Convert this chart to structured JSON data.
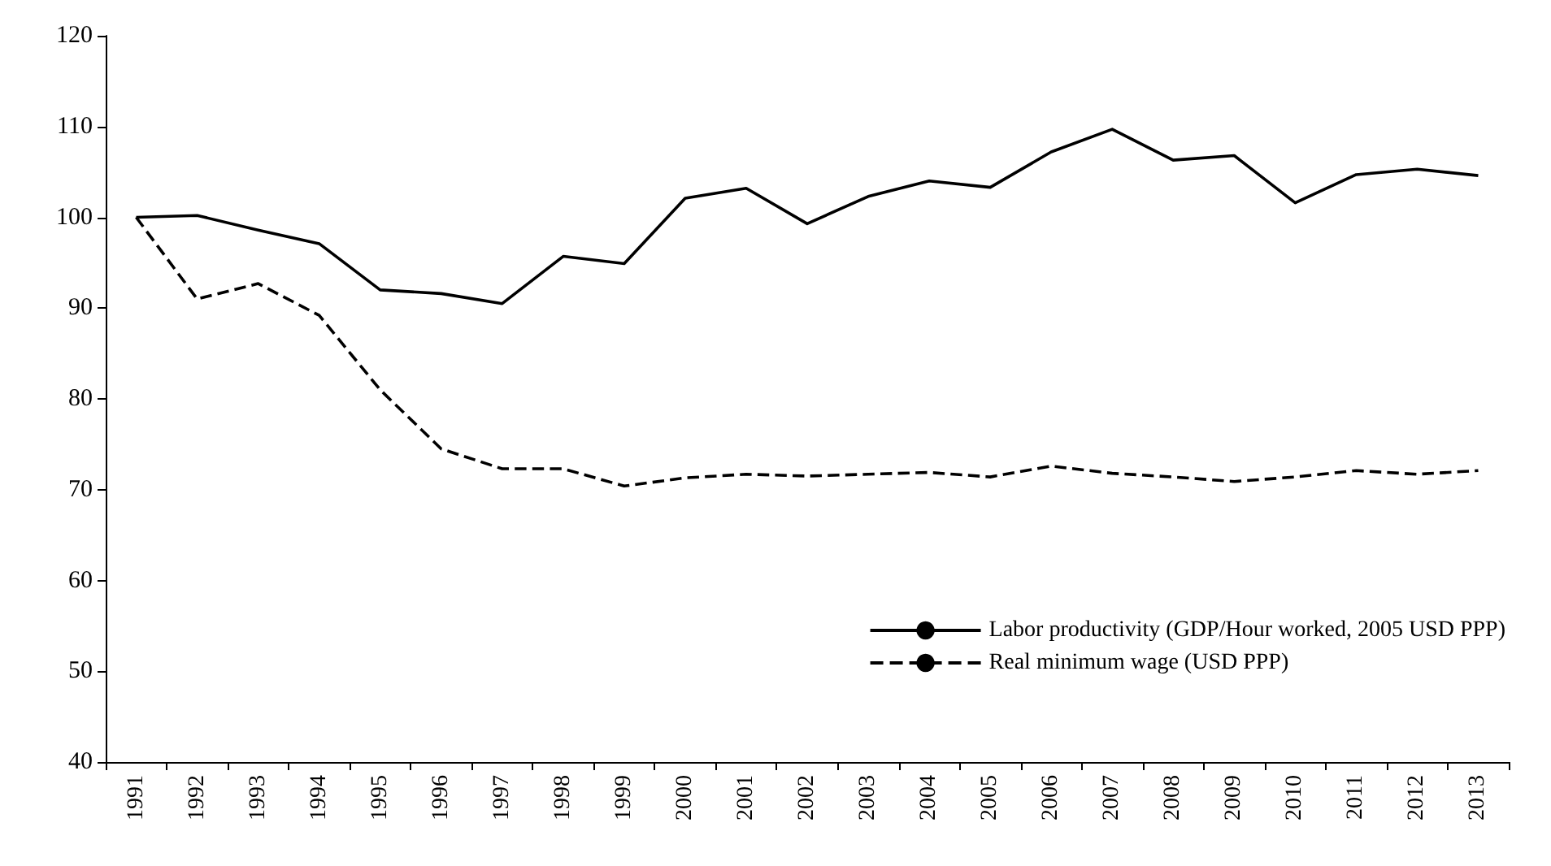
{
  "chart_data": {
    "type": "line",
    "categories": [
      "1991",
      "1992",
      "1993",
      "1994",
      "1995",
      "1996",
      "1997",
      "1998",
      "1999",
      "2000",
      "2001",
      "2002",
      "2003",
      "2004",
      "2005",
      "2006",
      "2007",
      "2008",
      "2009",
      "2010",
      "2011",
      "2012",
      "2013"
    ],
    "series": [
      {
        "name": "Labor productivity (GDP/Hour worked, 2005 USD PPP)",
        "color": "#000000",
        "line_style": "solid",
        "values": [
          100,
          100.2,
          98.6,
          97.1,
          92,
          91.6,
          90.5,
          95.7,
          94.9,
          102.1,
          103.2,
          99.3,
          102.3,
          104,
          103.3,
          107.2,
          109.7,
          106.3,
          106.8,
          101.6,
          104.7,
          105.3,
          104.6
        ]
      },
      {
        "name": "Real minimum wage (USD PPP)",
        "color": "#000000",
        "line_style": "dashed",
        "values": [
          100,
          91,
          92.7,
          89.2,
          81,
          74.5,
          72.3,
          72.3,
          70.4,
          71.3,
          71.7,
          71.5,
          71.7,
          71.9,
          71.4,
          72.6,
          71.8,
          71.4,
          70.9,
          71.4,
          72.1,
          71.7,
          72.1
        ]
      }
    ],
    "ylim": [
      40,
      120
    ],
    "yticks": [
      40,
      50,
      60,
      70,
      80,
      90,
      100,
      110,
      120
    ],
    "grid": false,
    "legend": "bottom right",
    "marker": "none"
  }
}
